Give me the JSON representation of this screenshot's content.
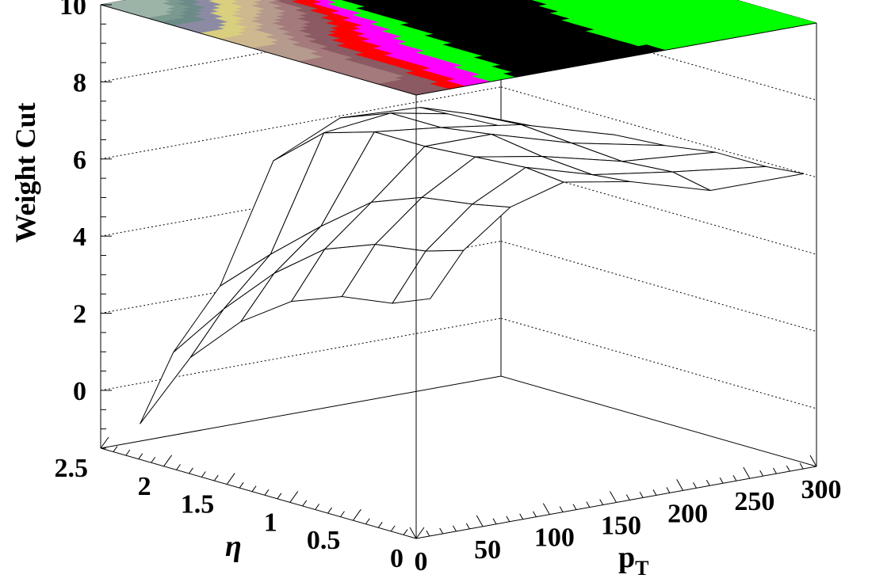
{
  "chart_data": {
    "type": "surface",
    "title": "",
    "zlabel": "Weight Cut",
    "xlabel_main": "p",
    "xlabel_sub": "T",
    "ylabel": "η",
    "xlim": [
      0,
      300
    ],
    "ylim": [
      0,
      2.5
    ],
    "zlim": [
      -1.5,
      10
    ],
    "x_ticks": [
      "0",
      "50",
      "100",
      "150",
      "200",
      "250",
      "300"
    ],
    "y_ticks": [
      "0",
      "0.5",
      "1",
      "1.5",
      "2",
      "2.5"
    ],
    "z_ticks": [
      "0",
      "2",
      "4",
      "6",
      "8",
      "10"
    ],
    "pt": [
      20,
      45,
      80,
      120,
      170,
      230,
      300
    ],
    "eta": [
      0.1,
      0.4,
      0.8,
      1.2,
      1.6,
      2.0,
      2.4
    ],
    "z": [
      [
        4.5,
        5.6,
        6.5,
        6.9,
        6.6,
        6.0,
        6.0
      ],
      [
        4.1,
        5.3,
        6.3,
        7.0,
        6.5,
        6.2,
        5.9
      ],
      [
        3.9,
        5.1,
        6.1,
        6.9,
        6.6,
        6.1,
        5.9
      ],
      [
        3.4,
        4.6,
        5.6,
        6.8,
        6.8,
        6.2,
        5.7
      ],
      [
        2.5,
        3.6,
        4.6,
        6.8,
        6.6,
        6.3,
        5.6
      ],
      [
        1.2,
        2.3,
        3.5,
        6.4,
        6.6,
        6.2,
        5.3
      ],
      [
        -0.9,
        0.8,
        2.3,
        5.3,
        6.1,
        6.0,
        5.0
      ]
    ],
    "contour_colors": [
      "#000000",
      "#00ff00",
      "#ff00ff",
      "#ff0000",
      "#8b5a62",
      "#a57a7c",
      "#b59a8e",
      "#cdb88f",
      "#d9cf7e",
      "#8d8aa3",
      "#6c8b88",
      "#7a9a8f",
      "#9cb3a8"
    ]
  }
}
